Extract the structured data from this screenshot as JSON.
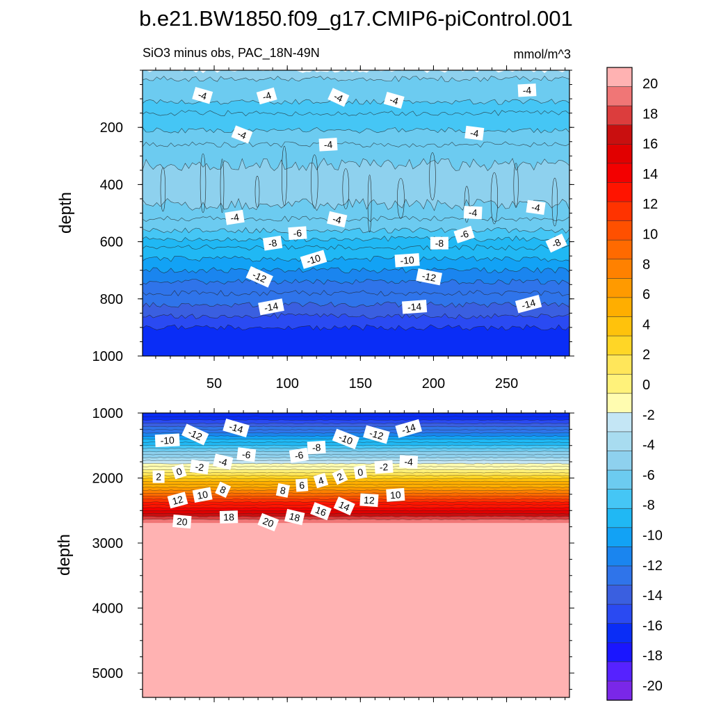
{
  "title": "b.e21.BW1850.f09_g17.CMIP6-piControl.001",
  "subtitle_left": "SiO3 minus obs, PAC_18N-49N",
  "subtitle_right": "mmol/m^3",
  "colors": {
    "levels_neg": [
      "#7a27e8",
      "#5622ff",
      "#1a16ff",
      "#0a2df6",
      "#2a4af2",
      "#3a5fe0",
      "#2f74ea",
      "#1a85ef",
      "#12a2f5",
      "#20b8f4",
      "#45c6f5",
      "#6ccbf0",
      "#8ed1ee",
      "#a8dcf0",
      "#c4e6f5"
    ],
    "levels_pos": [
      "#fffcb0",
      "#fff27a",
      "#ffe65a",
      "#ffd626",
      "#ffc20c",
      "#ffae00",
      "#ff9a00",
      "#ff8100",
      "#ff6a00",
      "#ff5000",
      "#ff3300",
      "#ff1400",
      "#f30000",
      "#e10000",
      "#c90f0f",
      "#dc3d3d",
      "#f07676",
      "#ffb2b2"
    ]
  },
  "chart_data": [
    {
      "type": "contour",
      "panel": "upper",
      "ylabel": "depth",
      "yreversed": true,
      "ylim": [
        0,
        1000
      ],
      "xlim": [
        1,
        293
      ],
      "yticks": [
        200,
        400,
        600,
        800,
        1000
      ],
      "xticks": [
        50,
        100,
        150,
        200,
        250
      ],
      "contour_labels": [
        {
          "v": "-4",
          "x": 42,
          "y": 88
        },
        {
          "v": "-4",
          "x": 86,
          "y": 90
        },
        {
          "v": "-4",
          "x": 135,
          "y": 95
        },
        {
          "v": "-4",
          "x": 173,
          "y": 105
        },
        {
          "v": "-4",
          "x": 264,
          "y": 70
        },
        {
          "v": "-4",
          "x": 69,
          "y": 225
        },
        {
          "v": "-4",
          "x": 128,
          "y": 260
        },
        {
          "v": "-4",
          "x": 228,
          "y": 220
        },
        {
          "v": "-4",
          "x": 64,
          "y": 515
        },
        {
          "v": "-4",
          "x": 134,
          "y": 522
        },
        {
          "v": "-4",
          "x": 227,
          "y": 498
        },
        {
          "v": "-4",
          "x": 270,
          "y": 480
        },
        {
          "v": "-6",
          "x": 107,
          "y": 570
        },
        {
          "v": "-6",
          "x": 221,
          "y": 575
        },
        {
          "v": "-8",
          "x": 90,
          "y": 605
        },
        {
          "v": "-8",
          "x": 204,
          "y": 605
        },
        {
          "v": "-8",
          "x": 284,
          "y": 605
        },
        {
          "v": "-10",
          "x": 118,
          "y": 662
        },
        {
          "v": "-10",
          "x": 182,
          "y": 665
        },
        {
          "v": "-12",
          "x": 81,
          "y": 723
        },
        {
          "v": "-12",
          "x": 197,
          "y": 723
        },
        {
          "v": "-14",
          "x": 89,
          "y": 828
        },
        {
          "v": "-14",
          "x": 187,
          "y": 828
        },
        {
          "v": "-14",
          "x": 265,
          "y": 818
        }
      ]
    },
    {
      "type": "contour",
      "panel": "lower",
      "ylabel": "depth",
      "yreversed": true,
      "ylim": [
        1000,
        5500
      ],
      "xlim": [
        1,
        293
      ],
      "yticks": [
        1000,
        2000,
        3000,
        4000,
        5000
      ],
      "contour_labels": [
        {
          "v": "-14",
          "x": 65,
          "y": 1230
        },
        {
          "v": "-14",
          "x": 183,
          "y": 1240
        },
        {
          "v": "-12",
          "x": 37,
          "y": 1330
        },
        {
          "v": "-12",
          "x": 161,
          "y": 1330
        },
        {
          "v": "-10",
          "x": 18,
          "y": 1420
        },
        {
          "v": "-10",
          "x": 140,
          "y": 1400
        },
        {
          "v": "-8",
          "x": 120,
          "y": 1530
        },
        {
          "v": "-6",
          "x": 72,
          "y": 1640
        },
        {
          "v": "-6",
          "x": 108,
          "y": 1650
        },
        {
          "v": "-4",
          "x": 56,
          "y": 1750
        },
        {
          "v": "-4",
          "x": 183,
          "y": 1750
        },
        {
          "v": "-2",
          "x": 40,
          "y": 1830
        },
        {
          "v": "-2",
          "x": 166,
          "y": 1830
        },
        {
          "v": "0",
          "x": 26,
          "y": 1900
        },
        {
          "v": "0",
          "x": 150,
          "y": 1910
        },
        {
          "v": "2",
          "x": 12,
          "y": 1980
        },
        {
          "v": "2",
          "x": 136,
          "y": 1980
        },
        {
          "v": "4",
          "x": 123,
          "y": 2040
        },
        {
          "v": "6",
          "x": 110,
          "y": 2110
        },
        {
          "v": "8",
          "x": 56,
          "y": 2180
        },
        {
          "v": "8",
          "x": 97,
          "y": 2190
        },
        {
          "v": "10",
          "x": 42,
          "y": 2260
        },
        {
          "v": "10",
          "x": 174,
          "y": 2260
        },
        {
          "v": "12",
          "x": 25,
          "y": 2340
        },
        {
          "v": "12",
          "x": 156,
          "y": 2340
        },
        {
          "v": "14",
          "x": 139,
          "y": 2430
        },
        {
          "v": "16",
          "x": 123,
          "y": 2510
        },
        {
          "v": "18",
          "x": 60,
          "y": 2600
        },
        {
          "v": "18",
          "x": 105,
          "y": 2600
        },
        {
          "v": "20",
          "x": 28,
          "y": 2670
        },
        {
          "v": "20",
          "x": 87,
          "y": 2680
        }
      ]
    }
  ],
  "colorbar": {
    "labels": [
      "20",
      "18",
      "16",
      "14",
      "12",
      "10",
      "8",
      "6",
      "4",
      "2",
      "0",
      "-2",
      "-4",
      "-6",
      "-8",
      "-10",
      "-12",
      "-14",
      "-16",
      "-18",
      "-20"
    ]
  }
}
